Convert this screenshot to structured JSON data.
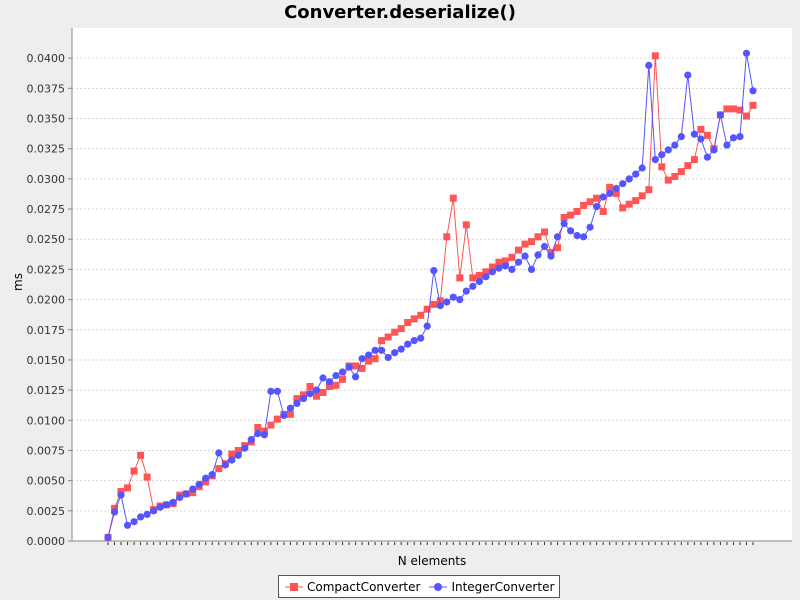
{
  "chart_data": {
    "type": "line",
    "title": "Converter.deserialize()",
    "xlabel": "N elements",
    "ylabel": "ms",
    "ylim": [
      0,
      0.0425
    ],
    "y_ticks": [
      "0.0000",
      "0.0025",
      "0.0050",
      "0.0075",
      "0.0100",
      "0.0125",
      "0.0150",
      "0.0175",
      "0.0200",
      "0.0225",
      "0.0250",
      "0.0275",
      "0.0300",
      "0.0325",
      "0.0350",
      "0.0375",
      "0.0400"
    ],
    "grid": true,
    "legend_position": "bottom",
    "series": [
      {
        "name": "CompactConverter",
        "color": "#ff5555",
        "marker": "square",
        "values": [
          0.0003,
          0.0027,
          0.0041,
          0.0044,
          0.0058,
          0.0071,
          0.0053,
          0.0026,
          0.0029,
          0.003,
          0.0031,
          0.0038,
          0.0039,
          0.004,
          0.0045,
          0.0049,
          0.0054,
          0.006,
          0.0064,
          0.0072,
          0.0075,
          0.0079,
          0.0082,
          0.0094,
          0.0091,
          0.0096,
          0.0101,
          0.0105,
          0.0105,
          0.0118,
          0.0121,
          0.0128,
          0.012,
          0.0123,
          0.0128,
          0.0129,
          0.0134,
          0.0145,
          0.0145,
          0.0143,
          0.0149,
          0.0151,
          0.0166,
          0.0169,
          0.0173,
          0.0176,
          0.0181,
          0.0184,
          0.0187,
          0.0192,
          0.0196,
          0.0199,
          0.0252,
          0.0284,
          0.0218,
          0.0262,
          0.0218,
          0.022,
          0.0223,
          0.0227,
          0.0231,
          0.0232,
          0.0235,
          0.0241,
          0.0246,
          0.0248,
          0.0252,
          0.0256,
          0.0239,
          0.0243,
          0.0268,
          0.027,
          0.0273,
          0.0278,
          0.0281,
          0.0284,
          0.0273,
          0.0293,
          0.0288,
          0.0276,
          0.0279,
          0.0282,
          0.0286,
          0.0291,
          0.0402,
          0.031,
          0.0299,
          0.0302,
          0.0306,
          0.0311,
          0.0316,
          0.0341,
          0.0336,
          0.0325,
          0.0353,
          0.0358,
          0.0358,
          0.0357,
          0.0352,
          0.0361
        ]
      },
      {
        "name": "IntegerConverter",
        "color": "#5555ff",
        "marker": "circle",
        "values": [
          0.0003,
          0.0024,
          0.0038,
          0.0013,
          0.0016,
          0.002,
          0.0022,
          0.0025,
          0.0028,
          0.003,
          0.0032,
          0.0036,
          0.0039,
          0.0043,
          0.0047,
          0.0052,
          0.0055,
          0.0073,
          0.0063,
          0.0067,
          0.0071,
          0.0077,
          0.0084,
          0.0089,
          0.0088,
          0.0124,
          0.0124,
          0.0104,
          0.011,
          0.0114,
          0.0118,
          0.0122,
          0.0125,
          0.0135,
          0.0132,
          0.0137,
          0.014,
          0.0144,
          0.0136,
          0.0151,
          0.0154,
          0.0158,
          0.0158,
          0.0152,
          0.0156,
          0.0159,
          0.0163,
          0.0166,
          0.0168,
          0.0178,
          0.0224,
          0.0195,
          0.0198,
          0.0202,
          0.02,
          0.0207,
          0.0211,
          0.0215,
          0.0219,
          0.0223,
          0.0226,
          0.0228,
          0.0225,
          0.0231,
          0.0236,
          0.0225,
          0.0237,
          0.0244,
          0.0236,
          0.0252,
          0.0263,
          0.0257,
          0.0253,
          0.0252,
          0.026,
          0.0277,
          0.0285,
          0.0288,
          0.0292,
          0.0296,
          0.03,
          0.0304,
          0.0309,
          0.0394,
          0.0316,
          0.032,
          0.0324,
          0.0328,
          0.0335,
          0.0386,
          0.0337,
          0.0333,
          0.0318,
          0.0324,
          0.0353,
          0.0328,
          0.0334,
          0.0335,
          0.0404,
          0.0373
        ]
      }
    ]
  }
}
